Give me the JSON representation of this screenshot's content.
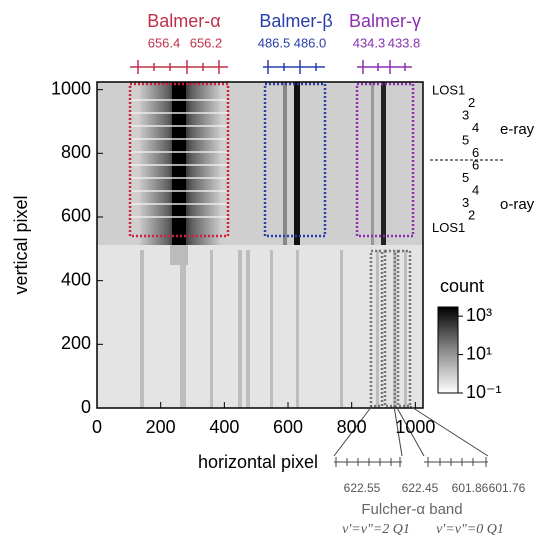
{
  "chart_data": {
    "type": "image",
    "xlabel": "horizontal pixel",
    "ylabel": "vertical pixel",
    "xlim": [
      0,
      1024
    ],
    "ylim": [
      0,
      1024
    ],
    "xticks": [
      0,
      200,
      400,
      600,
      800,
      1000
    ],
    "yticks": [
      0,
      200,
      400,
      600,
      800,
      1000
    ],
    "colorbar": {
      "label": "count",
      "scale": "log",
      "lim": [
        0.1,
        3000
      ],
      "ticks": [
        {
          "value": 0.1,
          "label": "10⁻¹"
        },
        {
          "value": 10,
          "label": "10¹"
        },
        {
          "value": 1000,
          "label": "10³"
        }
      ]
    },
    "lines": [
      {
        "name": "Balmer-α",
        "color": "#c0304a",
        "wavelengths": [
          "656.4",
          "656.2"
        ]
      },
      {
        "name": "Balmer-β",
        "color": "#2a3ea8",
        "wavelengths": [
          "486.5",
          "486.0"
        ]
      },
      {
        "name": "Balmer-γ",
        "color": "#8a30b0",
        "wavelengths": [
          "434.3",
          "433.8"
        ]
      }
    ],
    "los_labels": [
      "LOS1",
      "2",
      "3",
      "4",
      "5",
      "6",
      "6",
      "5",
      "4",
      "3",
      "2",
      "LOS1"
    ],
    "rays": [
      "e-ray",
      "o-ray"
    ],
    "fulcher": {
      "title": "Fulcher-α band",
      "wavelengths": [
        "622.55",
        "622.45",
        "601.86",
        "601.76"
      ],
      "bands": [
        "v'=v\"=2 Q1",
        "v'=v\"=0 Q1"
      ]
    }
  }
}
